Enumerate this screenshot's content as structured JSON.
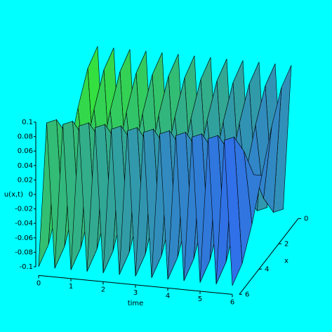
{
  "chart_data": {
    "type": "surface",
    "zlabel": "u(x,t)",
    "tlabel": "time",
    "xlabel": "x",
    "t": [
      0,
      0.25,
      0.5,
      0.75,
      1,
      1.25,
      1.5,
      1.75,
      2,
      2.25,
      2.5,
      2.75,
      3,
      3.25,
      3.5,
      3.75,
      4,
      4.25,
      4.5,
      4.75,
      5,
      5.25,
      5.5,
      5.75,
      6
    ],
    "x": [
      0,
      1,
      2,
      3,
      4,
      5,
      6
    ],
    "z": [
      [
        0.1,
        -0.1,
        0.1,
        -0.1,
        0.1,
        -0.1,
        0.1,
        -0.1,
        0.1,
        -0.1,
        0.1,
        -0.1,
        0.1,
        -0.1,
        0.1,
        -0.1,
        0.1,
        -0.1,
        0.1,
        -0.1,
        0.1,
        -0.1,
        0.1,
        -0.1,
        0.1
      ],
      [
        0.087,
        -0.087,
        0.087,
        -0.087,
        0.087,
        -0.087,
        0.087,
        -0.087,
        0.087,
        -0.087,
        0.087,
        -0.087,
        0.087,
        -0.087,
        0.087,
        -0.087,
        0.087,
        -0.087,
        0.087,
        -0.087,
        0.087,
        -0.087,
        0.087,
        -0.087,
        0.087
      ],
      [
        0.05,
        -0.05,
        0.05,
        -0.05,
        0.05,
        -0.05,
        0.05,
        -0.05,
        0.05,
        -0.05,
        0.05,
        -0.05,
        0.05,
        -0.05,
        0.05,
        -0.05,
        0.05,
        -0.05,
        0.05,
        -0.05,
        0.05,
        -0.05,
        0.05,
        -0.05,
        0.05
      ],
      [
        0,
        0,
        0,
        0,
        0,
        0,
        0,
        0,
        0,
        0,
        0,
        0,
        0,
        0,
        0,
        0,
        0,
        0,
        0,
        0,
        0,
        0,
        0,
        0,
        0
      ],
      [
        -0.05,
        0.05,
        -0.05,
        0.05,
        -0.05,
        0.05,
        -0.05,
        0.05,
        -0.05,
        0.05,
        -0.05,
        0.05,
        -0.05,
        0.05,
        -0.05,
        0.05,
        -0.05,
        0.05,
        -0.05,
        0.05,
        -0.05,
        0.05,
        -0.05,
        0.05,
        -0.05
      ],
      [
        -0.087,
        0.087,
        -0.087,
        0.087,
        -0.087,
        0.087,
        -0.087,
        0.087,
        -0.087,
        0.087,
        -0.087,
        0.087,
        -0.087,
        0.087,
        -0.087,
        0.087,
        -0.087,
        0.087,
        -0.087,
        0.087,
        -0.087,
        0.087,
        -0.087,
        0.087,
        -0.087
      ],
      [
        -0.1,
        0.1,
        -0.1,
        0.1,
        -0.1,
        0.1,
        -0.1,
        0.1,
        -0.1,
        0.1,
        -0.1,
        0.1,
        -0.1,
        0.1,
        -0.1,
        0.1,
        -0.1,
        0.1,
        -0.1,
        0.1,
        -0.1,
        0.1,
        -0.1,
        0.1,
        -0.1
      ]
    ],
    "zlim": [
      -0.1,
      0.1
    ],
    "zticks": [
      -0.1,
      -0.08,
      -0.06,
      -0.04,
      -0.02,
      0,
      0.02,
      0.04,
      0.06,
      0.08,
      0.1
    ],
    "tlim": [
      0,
      6
    ],
    "tticks": [
      0,
      1,
      2,
      3,
      4,
      5,
      6
    ],
    "xlim": [
      0,
      6
    ],
    "xticks": [
      0,
      2,
      4,
      6
    ],
    "colors": [
      "#33e040",
      "#3070e8"
    ]
  }
}
